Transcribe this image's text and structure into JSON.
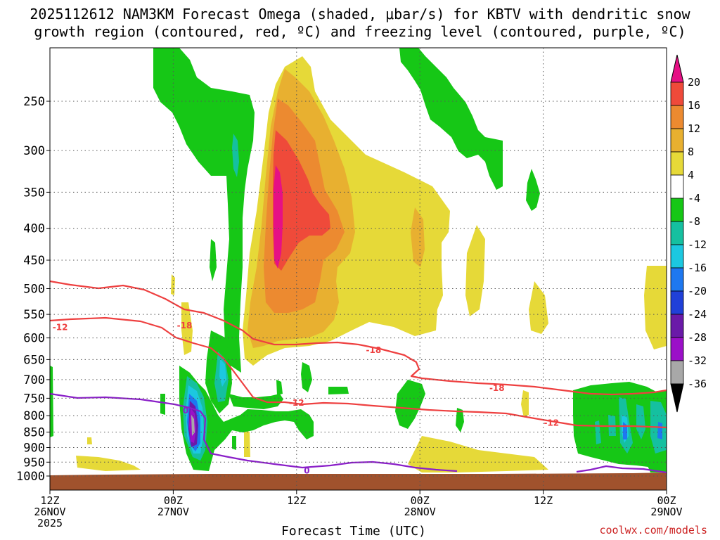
{
  "title_line1": "2025112612 NAM3KM Forecast Omega (shaded, μbar/s) for KBTV with dendritic snow",
  "title_line2": "growth region (contoured, red, ºC) and freezing level (contoured, purple, ºC)",
  "credit": "coolwx.com/models",
  "colors": {
    "green": "#16c716",
    "teal": "#15c0a0",
    "cyan": "#1cc8e0",
    "blue": "#1e78f0",
    "darkblue": "#2040d8",
    "indigo": "#6a1aa8",
    "purple": "#9b10c8",
    "gray": "#a8a8a8",
    "yellow": "#e6d938",
    "gold": "#e8b030",
    "orange": "#ec8a30",
    "red": "#ef4a3a",
    "magenta": "#e61085",
    "ground": "#a0522d",
    "dgz": "#ee4040",
    "freezing": "#8a1fc8"
  },
  "chart_data": {
    "type": "heatmap",
    "title": "2025112612 NAM3KM Forecast Omega (shaded, μbar/s) for KBTV with dendritic snow growth region (contoured, red, ºC) and freezing level (contoured, purple, ºC)",
    "xlabel": "Forecast Time (UTC)",
    "ylabel": "",
    "x_range_hours": [
      0,
      60
    ],
    "x_ticks": [
      {
        "hour": 0,
        "lines": [
          "12Z",
          "26NOV",
          "2025"
        ]
      },
      {
        "hour": 12,
        "lines": [
          "00Z",
          "27NOV"
        ]
      },
      {
        "hour": 24,
        "lines": [
          "12Z"
        ]
      },
      {
        "hour": 36,
        "lines": [
          "00Z",
          "28NOV"
        ]
      },
      {
        "hour": 48,
        "lines": [
          "12Z"
        ]
      },
      {
        "hour": 60,
        "lines": [
          "00Z",
          "29NOV"
        ]
      }
    ],
    "y_ticks_hpa": [
      250,
      300,
      350,
      400,
      450,
      500,
      550,
      600,
      650,
      700,
      750,
      800,
      850,
      900,
      950,
      1000
    ],
    "y_range_hpa": [
      200,
      1000
    ],
    "colorbar": {
      "unit": "μbar/s",
      "labels": [
        "20",
        "16",
        "12",
        "8",
        "4",
        "-4",
        "-8",
        "-12",
        "-16",
        "-20",
        "-24",
        "-28",
        "-32",
        "-36"
      ]
    },
    "contour_labels": [
      {
        "text": "-18",
        "hour": 13.1,
        "p": 573,
        "color": "dgz"
      },
      {
        "text": "-12",
        "hour": 1.0,
        "p": 577,
        "color": "dgz"
      },
      {
        "text": "-18",
        "hour": 31.5,
        "p": 628,
        "color": "dgz"
      },
      {
        "text": "-12",
        "hour": 24.0,
        "p": 763,
        "color": "dgz"
      },
      {
        "text": "-18",
        "hour": 43.5,
        "p": 722,
        "color": "dgz"
      },
      {
        "text": "-12",
        "hour": 48.8,
        "p": 822,
        "color": "dgz"
      },
      {
        "text": "0",
        "hour": 13.2,
        "p": 785,
        "color": "freezing"
      },
      {
        "text": "0",
        "hour": 25.0,
        "p": 981,
        "color": "freezing"
      }
    ]
  }
}
